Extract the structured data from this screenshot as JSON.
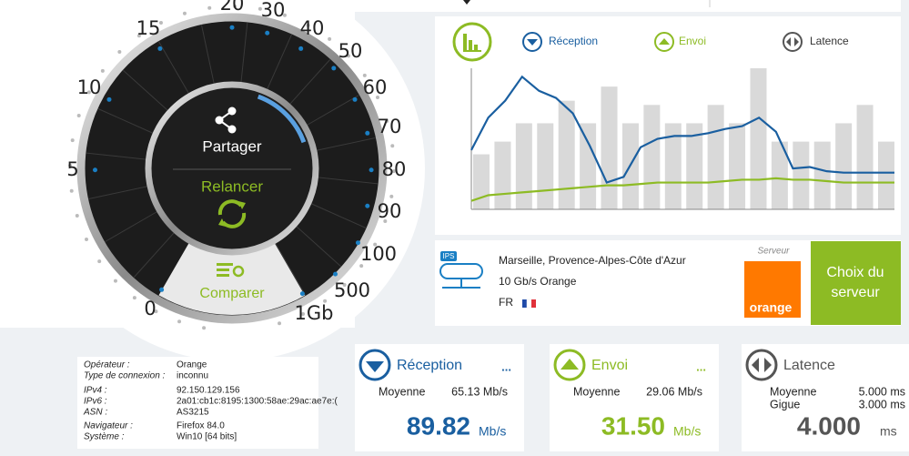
{
  "gauge": {
    "labels": [
      "0",
      "5",
      "10",
      "15",
      "20",
      "30",
      "40",
      "50",
      "60",
      "70",
      "80",
      "90",
      "100",
      "500",
      "1Gb"
    ],
    "share": "Partager",
    "restart": "Relancer",
    "compare": "Comparer"
  },
  "graph": {
    "legend": {
      "reception": "Réception",
      "upload": "Envoi",
      "latency": "Latence"
    },
    "ylim": [
      0,
      100
    ],
    "bars": [
      39,
      48,
      61,
      61,
      77,
      61,
      87,
      61,
      74,
      61,
      61,
      74,
      61,
      100,
      48,
      48,
      48,
      61,
      74,
      48
    ],
    "reception": [
      42,
      65,
      77,
      94,
      84,
      79,
      68,
      45,
      19,
      23,
      44,
      50,
      52,
      52,
      54,
      57,
      59,
      65,
      55,
      29,
      30,
      27,
      26,
      26,
      26,
      26
    ],
    "upload": [
      6,
      10,
      11,
      12,
      13,
      14,
      15,
      16,
      17,
      17,
      18,
      19,
      19,
      19,
      19,
      20,
      21,
      21,
      22,
      21,
      21,
      20,
      19,
      19,
      19,
      19
    ],
    "colors": {
      "bars": "#d9d9d9",
      "reception": "#1a5fa0",
      "upload": "#8dbb24"
    }
  },
  "server": {
    "badge": "IPS",
    "location": "Marseille, Provence-Alpes-Côte d'Azur",
    "provider": "10 Gb/s Orange",
    "country": "FR",
    "caption": "Serveur",
    "logo": "orange",
    "button": "Choix du serveur"
  },
  "info": {
    "rows": [
      [
        "Opérateur :",
        "Orange"
      ],
      [
        "Type de connexion :",
        "inconnu"
      ],
      [
        "IPv4 :",
        "92.150.129.156"
      ],
      [
        "IPv6 :",
        "2a01:cb1c:8195:1300:58ae:29ac:ae7e:("
      ],
      [
        "ASN :",
        "AS3215"
      ],
      [
        "Navigateur :",
        "Firefox 84.0"
      ],
      [
        "Système :",
        "Win10 [64 bits]"
      ]
    ]
  },
  "cards": [
    {
      "title": "Réception",
      "more": "...",
      "rows": [
        [
          "Moyenne",
          "65.13 Mb/s"
        ]
      ],
      "value": "89.82",
      "unit": "Mb/s"
    },
    {
      "title": "Envoi",
      "more": "...",
      "rows": [
        [
          "Moyenne",
          "29.06 Mb/s"
        ]
      ],
      "value": "31.50",
      "unit": "Mb/s"
    },
    {
      "title": "Latence",
      "rows": [
        [
          "Moyenne",
          "5.000 ms"
        ],
        [
          "Gigue",
          "3.000 ms"
        ]
      ],
      "value": "4.000",
      "unit": "ms"
    }
  ]
}
